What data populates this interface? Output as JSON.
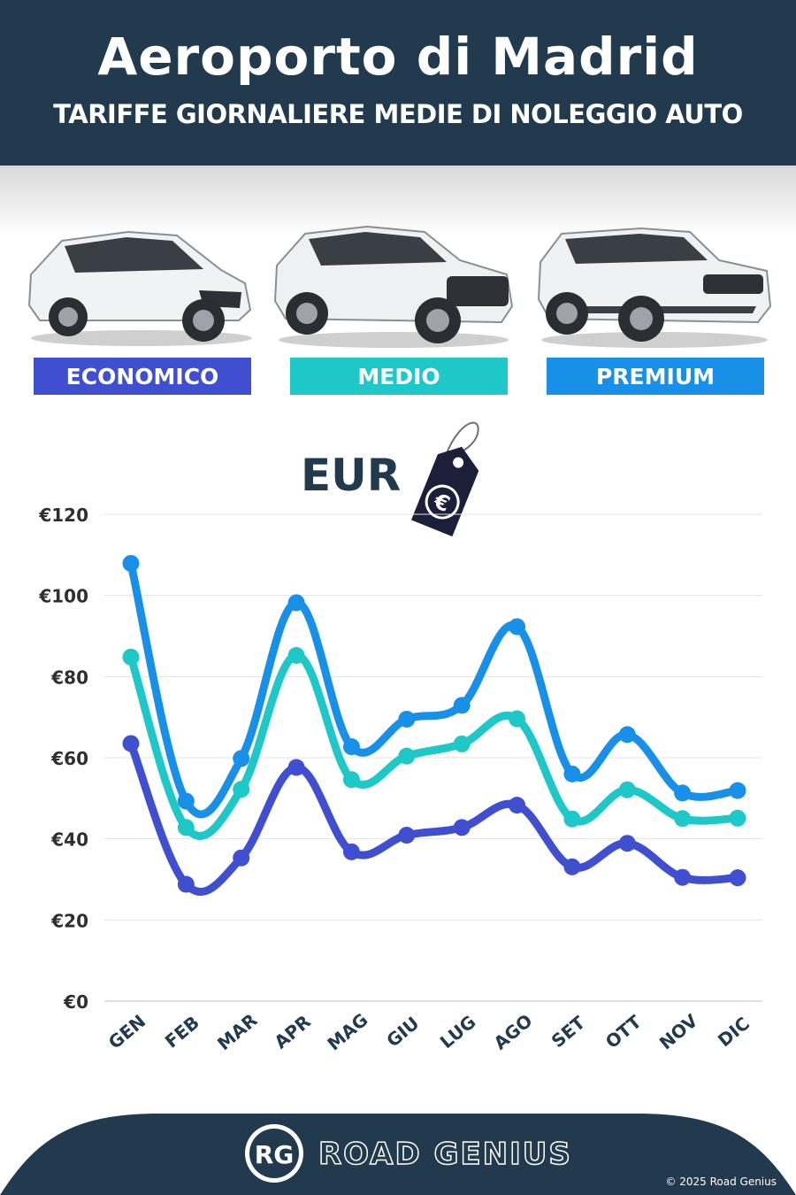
{
  "header": {
    "title": "Aeroporto di Madrid",
    "subtitle": "TARIFFE GIORNALIERE MEDIE DI NOLEGGIO AUTO"
  },
  "categories": [
    {
      "label": "ECONOMICO",
      "color": "#3f4fd0",
      "icon": "hatchback-car"
    },
    {
      "label": "MEDIO",
      "color": "#1ec8c8",
      "icon": "suv-car"
    },
    {
      "label": "PREMIUM",
      "color": "#1890e8",
      "icon": "premium-suv-car"
    }
  ],
  "currency_label": "EUR",
  "currency_tag_symbol": "€",
  "chart_data": {
    "type": "line",
    "categories": [
      "GEN",
      "FEB",
      "MAR",
      "APR",
      "MAG",
      "GIU",
      "LUG",
      "AGO",
      "SET",
      "OTT",
      "NOV",
      "DIC"
    ],
    "series": [
      {
        "name": "ECONOMICO",
        "color": "#3f4fd0",
        "values": [
          63.5,
          28.8,
          35.3,
          57.6,
          36.8,
          40.9,
          42.8,
          48.3,
          33.1,
          38.9,
          30.5,
          30.4
        ]
      },
      {
        "name": "MEDIO",
        "color": "#1ec8c8",
        "values": [
          84.8,
          42.8,
          52.2,
          85.2,
          54.6,
          60.4,
          63.4,
          69.6,
          44.9,
          52.1,
          45.0,
          45.1
        ]
      },
      {
        "name": "PREMIUM",
        "color": "#1890e8",
        "values": [
          107.9,
          49.3,
          59.8,
          98.2,
          62.7,
          69.5,
          72.9,
          92.3,
          56.0,
          65.7,
          51.3,
          51.9
        ]
      }
    ],
    "y_ticks": [
      "€0",
      "€20",
      "€40",
      "€60",
      "€80",
      "€100",
      "€120"
    ],
    "ylim": [
      0,
      120
    ],
    "grid": true
  },
  "footer": {
    "logo_text": "RG",
    "brand": "ROAD GENIUS",
    "copyright": "© 2025 Road Genius",
    "background": "#223a4d"
  }
}
